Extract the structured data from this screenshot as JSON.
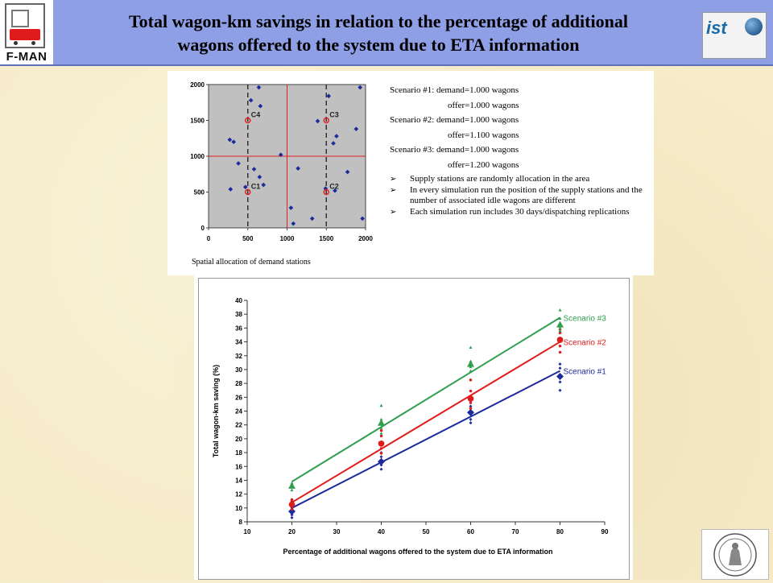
{
  "header": {
    "title_line1": "Total wagon-km savings in relation to the percentage of additional",
    "title_line2": "wagons offered to the system due to ETA information",
    "logo_left_text": "F-MAN",
    "logo_right_text": "ist",
    "logo_right_icon": "globe-icon"
  },
  "top_panel": {
    "caption": "Spatial allocation of demand stations",
    "scenarios": [
      {
        "demand": "Scenario #1: demand=1.000 wagons",
        "offer": "offer=1.000 wagons"
      },
      {
        "demand": "Scenario #2: demand=1.000 wagons",
        "offer": "offer=1.100 wagons"
      },
      {
        "demand": "Scenario #3: demand=1.000 wagons",
        "offer": "offer=1.200 wagons"
      }
    ],
    "bullets": [
      "Supply stations are randomly allocation in the area",
      "In every simulation run the position of the supply stations and the number of associated idle wagons are different",
      " Each simulation run includes 30 days/dispatching replications"
    ],
    "bullet_marker": "➢"
  },
  "chart_data": [
    {
      "type": "scatter",
      "title": "",
      "caption": "Spatial allocation of demand stations",
      "xlim": [
        0,
        2000
      ],
      "ylim": [
        0,
        2000
      ],
      "xticks": [
        0,
        500,
        1000,
        1500,
        2000
      ],
      "yticks": [
        0,
        500,
        1000,
        1500,
        2000
      ],
      "background": "#c0c0c0",
      "grid": false,
      "point_color": "#1c2a9c",
      "centers": [
        {
          "name": "C1",
          "x": 500,
          "y": 500
        },
        {
          "name": "C2",
          "x": 1500,
          "y": 500
        },
        {
          "name": "C3",
          "x": 1500,
          "y": 1500
        },
        {
          "name": "C4",
          "x": 500,
          "y": 1500
        }
      ],
      "center_color": "#e02020",
      "dashed_x": [
        500,
        1500
      ],
      "red_lines": {
        "x": 1000,
        "y": 1000
      },
      "points": [
        [
          320,
          1200
        ],
        [
          270,
          1230
        ],
        [
          280,
          540
        ],
        [
          380,
          900
        ],
        [
          470,
          570
        ],
        [
          540,
          1780
        ],
        [
          580,
          820
        ],
        [
          640,
          1960
        ],
        [
          660,
          1700
        ],
        [
          650,
          710
        ],
        [
          700,
          600
        ],
        [
          920,
          1020
        ],
        [
          1050,
          280
        ],
        [
          1080,
          60
        ],
        [
          1140,
          830
        ],
        [
          1320,
          130
        ],
        [
          1390,
          1490
        ],
        [
          1490,
          550
        ],
        [
          1530,
          1840
        ],
        [
          1590,
          1180
        ],
        [
          1610,
          520
        ],
        [
          1630,
          1280
        ],
        [
          1770,
          780
        ],
        [
          1880,
          1380
        ],
        [
          1930,
          1960
        ],
        [
          1960,
          130
        ]
      ]
    },
    {
      "type": "scatter",
      "title": "",
      "xlabel": "Percentage of additional wagons offered to the system due to ETA information",
      "ylabel": "Total wagon-km saving (%)",
      "xlim": [
        10,
        90
      ],
      "ylim": [
        8,
        40
      ],
      "xticks": [
        10,
        20,
        30,
        40,
        50,
        60,
        70,
        80,
        90
      ],
      "yticks": [
        8,
        10,
        12,
        14,
        16,
        18,
        20,
        22,
        24,
        26,
        28,
        30,
        32,
        34,
        36,
        38,
        40
      ],
      "grid": false,
      "legend": "inline-right",
      "series": [
        {
          "name": "Scenario #1",
          "color": "#1c2a9c",
          "marker": "diamond",
          "means": [
            [
              20,
              9.5
            ],
            [
              40,
              16.7
            ],
            [
              60,
              23.8
            ],
            [
              80,
              29.0
            ]
          ],
          "points": [
            [
              20,
              8.6
            ],
            [
              20,
              9.0
            ],
            [
              20,
              10.0
            ],
            [
              20,
              10.4
            ],
            [
              40,
              15.6
            ],
            [
              40,
              16.2
            ],
            [
              40,
              17.4
            ],
            [
              40,
              18.0
            ],
            [
              60,
              22.3
            ],
            [
              60,
              22.8
            ],
            [
              60,
              24.7
            ],
            [
              60,
              25.5
            ],
            [
              80,
              27.0
            ],
            [
              80,
              28.2
            ],
            [
              80,
              30.2
            ],
            [
              80,
              30.8
            ]
          ],
          "trend": [
            [
              20,
              10.0
            ],
            [
              80,
              29.8
            ]
          ]
        },
        {
          "name": "Scenario #2",
          "color": "#e01b1b",
          "marker": "circle",
          "means": [
            [
              20,
              10.5
            ],
            [
              40,
              19.3
            ],
            [
              60,
              25.8
            ],
            [
              80,
              34.3
            ]
          ],
          "points": [
            [
              20,
              9.8
            ],
            [
              20,
              11.0
            ],
            [
              20,
              11.2
            ],
            [
              40,
              17.9
            ],
            [
              40,
              18.6
            ],
            [
              40,
              20.4
            ],
            [
              40,
              21.2
            ],
            [
              60,
              24.4
            ],
            [
              60,
              25.2
            ],
            [
              60,
              26.9
            ],
            [
              60,
              28.5
            ],
            [
              80,
              32.5
            ],
            [
              80,
              33.4
            ],
            [
              80,
              35.3
            ],
            [
              80,
              35.8
            ]
          ],
          "trend": [
            [
              20,
              10.8
            ],
            [
              80,
              34.0
            ]
          ]
        },
        {
          "name": "Scenario #3",
          "color": "#2f9e4e",
          "marker": "triangle",
          "means": [
            [
              20,
              13.2
            ],
            [
              40,
              22.3
            ],
            [
              60,
              30.8
            ],
            [
              80,
              36.5
            ]
          ],
          "points": [
            [
              20,
              12.6
            ],
            [
              20,
              13.6
            ],
            [
              40,
              20.8
            ],
            [
              40,
              21.6
            ],
            [
              40,
              22.8
            ],
            [
              40,
              24.8
            ],
            [
              60,
              29.8
            ],
            [
              60,
              30.4
            ],
            [
              60,
              31.2
            ],
            [
              60,
              33.2
            ],
            [
              80,
              35.6
            ],
            [
              80,
              36.0
            ],
            [
              80,
              37.4
            ],
            [
              80,
              38.6
            ]
          ],
          "trend": [
            [
              20,
              13.8
            ],
            [
              80,
              37.5
            ]
          ]
        }
      ]
    }
  ]
}
